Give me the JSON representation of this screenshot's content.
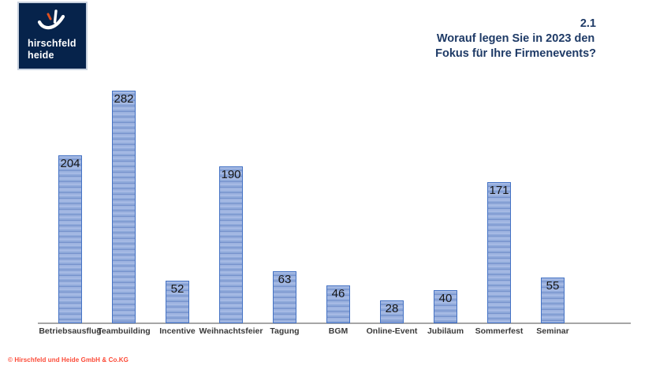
{
  "logo": {
    "line1": "hirschfeld",
    "line2": "heide",
    "bg_color": "#06234b",
    "accent_color": "#e0511f",
    "mark": "sail-smile-logo-mark"
  },
  "header": {
    "slide_number": "2.1",
    "title_line1": "Worauf legen Sie in 2023 den",
    "title_line2": "Fokus für Ihre Firmenevents?",
    "color": "#1e3a66"
  },
  "chart_data": {
    "type": "bar",
    "title": "Worauf legen Sie in 2023 den Fokus für Ihre Firmenevents?",
    "categories": [
      "Betriebsausflug",
      "Teambuilding",
      "Incentive",
      "Weihnachtsfeier",
      "Tagung",
      "BGM",
      "Online-Event",
      "Jubiläum",
      "Sommerfest",
      "Seminar"
    ],
    "values": [
      204,
      282,
      52,
      190,
      63,
      46,
      28,
      40,
      171,
      55
    ],
    "xlabel": "",
    "ylabel": "",
    "ylim": [
      0,
      300
    ],
    "grid": false,
    "legend": false,
    "data_labels": "inside-end",
    "bar_fill": "#8faadc",
    "bar_border": "#4472c4",
    "axis_line_color": "#a6a6a6",
    "value_label_color": "#151515",
    "category_label_color": "#3a3a3a"
  },
  "footer": {
    "copyright": "© Hirschfeld und Heide GmbH & Co.KG",
    "color": "#fc4936"
  }
}
